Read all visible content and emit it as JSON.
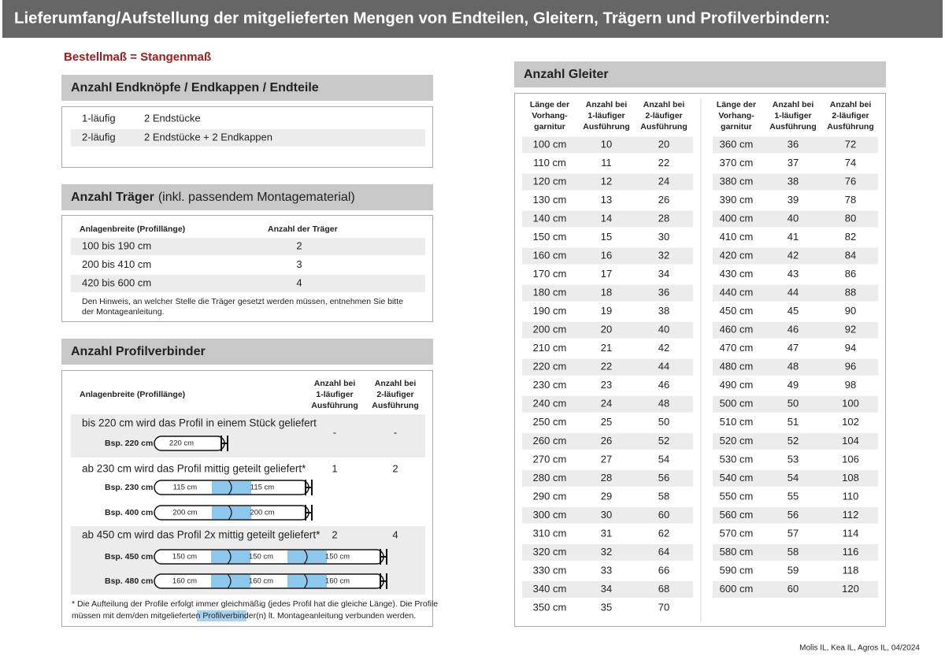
{
  "title": "Lieferumfang/Aufstellung der mitgelieferten Mengen von Endteilen, Gleitern, Trägern und Profilverbindern:",
  "subtitle": "Bestellmaß = Stangenmaß",
  "endteile": {
    "heading": "Anzahl Endknöpfe / Endkappen / Endteile",
    "rows": [
      [
        "1-läufig",
        "2 Endstücke"
      ],
      [
        "2-läufig",
        "2 Endstücke + 2 Endkappen"
      ]
    ]
  },
  "traeger": {
    "heading": "Anzahl Träger",
    "heading_note": "(inkl. passendem Montagematerial)",
    "columns": [
      "Anlagenbreite (Profillänge)",
      "Anzahl der Träger"
    ],
    "rows": [
      [
        "100 bis 190 cm",
        "2"
      ],
      [
        "200 bis 410 cm",
        "3"
      ],
      [
        "420 bis 600 cm",
        "4"
      ]
    ],
    "note_lines": [
      "Den Hinweis, an welcher Stelle die Träger gesetzt werden müssen, entnehmen Sie bitte",
      "der Montageanleitung."
    ]
  },
  "profilverbinder": {
    "heading": "Anzahl Profilverbinder",
    "columns": [
      [
        "Anlagenbreite (Profillänge)"
      ],
      [
        "Anzahl bei",
        "1-läufiger",
        "Ausführung"
      ],
      [
        "Anzahl bei",
        "2-läufiger",
        "Ausführung"
      ]
    ],
    "groups": [
      {
        "text": "bis 220 cm wird das Profil in einem Stück geliefert",
        "single": "-",
        "double": "-",
        "examples": [
          {
            "label": "Bsp. 220 cm",
            "segments": [
              "220 cm"
            ]
          }
        ]
      },
      {
        "text": "ab 230 cm wird das Profil mittig geteilt geliefert*",
        "single": "1",
        "double": "2",
        "examples": [
          {
            "label": "Bsp. 230 cm",
            "segments": [
              "115 cm",
              "115 cm"
            ]
          },
          {
            "label": "Bsp. 400 cm",
            "segments": [
              "200 cm",
              "200 cm"
            ]
          }
        ]
      },
      {
        "text": "ab 450 cm wird das Profil 2x mittig geteilt geliefert*",
        "single": "2",
        "double": "4",
        "examples": [
          {
            "label": "Bsp. 450 cm",
            "segments": [
              "150 cm",
              "150 cm",
              "150 cm"
            ]
          },
          {
            "label": "Bsp. 480 cm",
            "segments": [
              "160 cm",
              "160 cm",
              "160 cm"
            ]
          }
        ]
      }
    ],
    "note_line1": "* Die Aufteilung der Profile erfolgt immer gleichmäßig (jedes Profil hat die gleiche Länge). Die Profile",
    "note_line2_start": "müssen mit dem/den mitgelieferten",
    "note_highlight": "Profilverbinder",
    "note_line2_end": "(n) lt. Montageanleitung verbunden werden."
  },
  "gleiter": {
    "heading": "Anzahl Gleiter",
    "columns": [
      [
        "Länge der",
        "Vorhang-",
        "garnitur"
      ],
      [
        "Anzahl bei",
        "1-läufiger",
        "Ausführung"
      ],
      [
        "Anzahl bei",
        "2-läufiger",
        "Ausführung"
      ]
    ],
    "tables": [
      [
        [
          "100 cm",
          10,
          20
        ],
        [
          "110 cm",
          11,
          22
        ],
        [
          "120 cm",
          12,
          24
        ],
        [
          "130 cm",
          13,
          26
        ],
        [
          "140 cm",
          14,
          28
        ],
        [
          "150 cm",
          15,
          30
        ],
        [
          "160 cm",
          16,
          32
        ],
        [
          "170 cm",
          17,
          34
        ],
        [
          "180 cm",
          18,
          36
        ],
        [
          "190 cm",
          19,
          38
        ],
        [
          "200 cm",
          20,
          40
        ],
        [
          "210 cm",
          21,
          42
        ],
        [
          "220 cm",
          22,
          44
        ],
        [
          "230 cm",
          23,
          46
        ],
        [
          "240 cm",
          24,
          48
        ],
        [
          "250 cm",
          25,
          50
        ],
        [
          "260 cm",
          26,
          52
        ],
        [
          "270 cm",
          27,
          54
        ],
        [
          "280 cm",
          28,
          56
        ],
        [
          "290 cm",
          29,
          58
        ],
        [
          "300 cm",
          30,
          60
        ],
        [
          "310 cm",
          31,
          62
        ],
        [
          "320 cm",
          32,
          64
        ],
        [
          "330 cm",
          33,
          66
        ],
        [
          "340 cm",
          34,
          68
        ],
        [
          "350 cm",
          35,
          70
        ]
      ],
      [
        [
          "360 cm",
          36,
          72
        ],
        [
          "370 cm",
          37,
          74
        ],
        [
          "380 cm",
          38,
          76
        ],
        [
          "390 cm",
          39,
          78
        ],
        [
          "400 cm",
          40,
          80
        ],
        [
          "410 cm",
          41,
          82
        ],
        [
          "420 cm",
          42,
          84
        ],
        [
          "430 cm",
          43,
          86
        ],
        [
          "440 cm",
          44,
          88
        ],
        [
          "450 cm",
          45,
          90
        ],
        [
          "460 cm",
          46,
          92
        ],
        [
          "470 cm",
          47,
          94
        ],
        [
          "480 cm",
          48,
          96
        ],
        [
          "490 cm",
          49,
          98
        ],
        [
          "500 cm",
          50,
          100
        ],
        [
          "510 cm",
          51,
          102
        ],
        [
          "520 cm",
          52,
          104
        ],
        [
          "530 cm",
          53,
          106
        ],
        [
          "540 cm",
          54,
          108
        ],
        [
          "550 cm",
          55,
          110
        ],
        [
          "560 cm",
          56,
          112
        ],
        [
          "570 cm",
          57,
          114
        ],
        [
          "580 cm",
          58,
          116
        ],
        [
          "590 cm",
          59,
          118
        ],
        [
          "600 cm",
          60,
          120
        ]
      ]
    ]
  },
  "footer": "Molis IL, Kea IL, Agros IL, 04/2024"
}
